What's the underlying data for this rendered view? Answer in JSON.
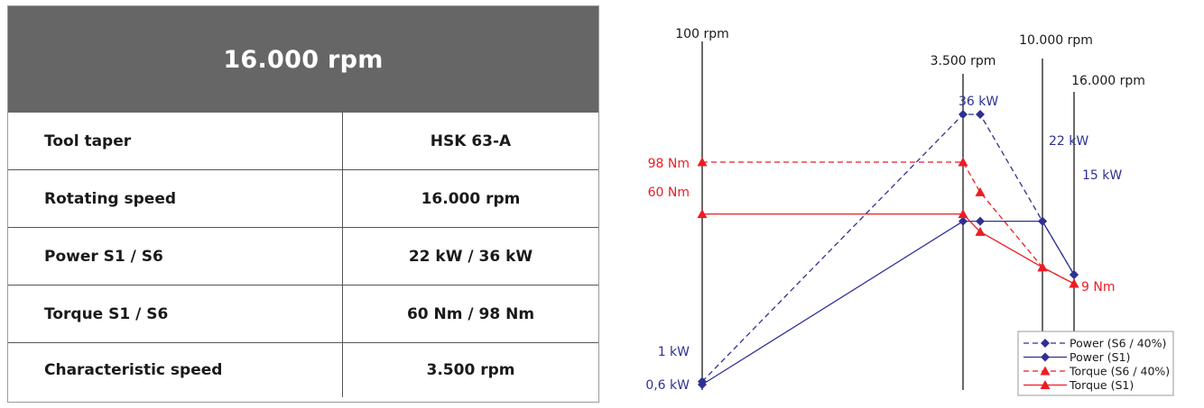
{
  "spec": {
    "header": "16.000 rpm",
    "rows": [
      {
        "label": "Tool taper",
        "value": "HSK 63-A"
      },
      {
        "label": "Rotating speed",
        "value": "16.000 rpm"
      },
      {
        "label": "Power S1 / S6",
        "value": "22 kW / 36 kW"
      },
      {
        "label": "Torque S1 / S6",
        "value": "60 Nm / 98 Nm"
      },
      {
        "label": "Characteristic speed",
        "value": "3.500 rpm"
      }
    ]
  },
  "chart_data": {
    "type": "line",
    "speed_markers": [
      "100 rpm",
      "3.500 rpm",
      "10.000 rpm",
      "16.000 rpm"
    ],
    "colors": {
      "power": "#2e3192",
      "torque": "#ed1c24",
      "axis": "#1a1a1a"
    },
    "series": [
      {
        "name": "Power (S6 / 40%)",
        "kind": "power",
        "dashed": true,
        "marker": "diamond",
        "points": [
          {
            "x": "100 rpm",
            "y": 1,
            "label": "1 kW"
          },
          {
            "x": "3.500 rpm",
            "y": 36,
            "label": "36 kW"
          },
          {
            "x": "4.500 rpm",
            "y": 36
          },
          {
            "x": "10.000 rpm",
            "y": 22
          },
          {
            "x": "16.000 rpm",
            "y": 15
          }
        ]
      },
      {
        "name": "Power (S1)",
        "kind": "power",
        "dashed": false,
        "marker": "diamond",
        "points": [
          {
            "x": "100 rpm",
            "y": 0.6,
            "label": "0,6 kW"
          },
          {
            "x": "3.500 rpm",
            "y": 22
          },
          {
            "x": "4.500 rpm",
            "y": 22
          },
          {
            "x": "10.000 rpm",
            "y": 22,
            "label": "22 kW"
          },
          {
            "x": "16.000 rpm",
            "y": 15,
            "label": "15 kW"
          }
        ]
      },
      {
        "name": "Torque (S6 / 40%)",
        "kind": "torque",
        "dashed": true,
        "marker": "triangle",
        "points": [
          {
            "x": "100 rpm",
            "y": 98,
            "label": "98 Nm"
          },
          {
            "x": "3.500 rpm",
            "y": 98
          },
          {
            "x": "4.500 rpm",
            "y": 76
          },
          {
            "x": "10.000 rpm",
            "y": 21
          },
          {
            "x": "16.000 rpm",
            "y": 9
          }
        ]
      },
      {
        "name": "Torque (S1)",
        "kind": "torque",
        "dashed": false,
        "marker": "triangle",
        "points": [
          {
            "x": "100 rpm",
            "y": 60,
            "label": "60 Nm"
          },
          {
            "x": "3.500 rpm",
            "y": 60
          },
          {
            "x": "4.500 rpm",
            "y": 47
          },
          {
            "x": "10.000 rpm",
            "y": 21
          },
          {
            "x": "16.000 rpm",
            "y": 9,
            "label": "9 Nm"
          }
        ]
      }
    ],
    "legend": {
      "position": "bottom-right"
    }
  }
}
